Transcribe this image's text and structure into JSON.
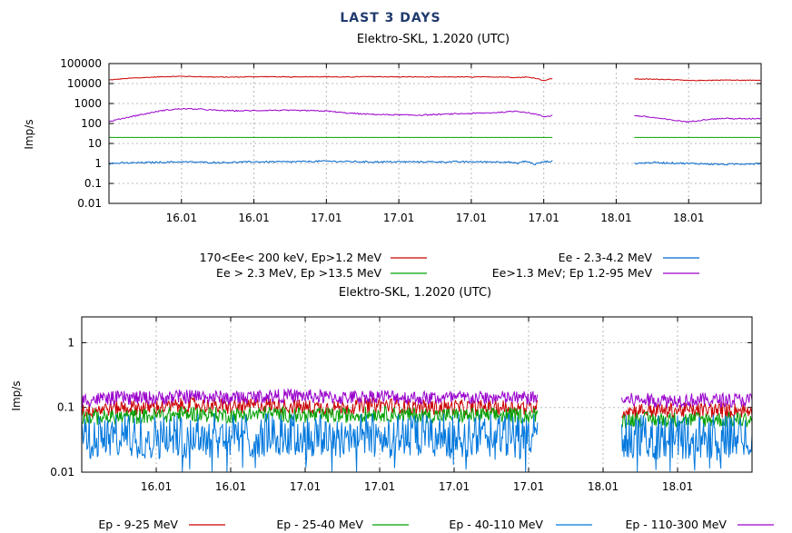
{
  "title": "LAST 3 DAYS",
  "chart_data": [
    {
      "type": "line",
      "subtitle": "Elektro-SKL, 1.2020 (UTC)",
      "ylabel": "Imp/s",
      "yscale": "log",
      "ylim": [
        0.01,
        100000
      ],
      "yticks": [
        {
          "v": 0.01,
          "label": "0.01"
        },
        {
          "v": 0.1,
          "label": "0.1"
        },
        {
          "v": 1,
          "label": "1"
        },
        {
          "v": 10,
          "label": "10"
        },
        {
          "v": 100,
          "label": "100"
        },
        {
          "v": 1000,
          "label": "1000"
        },
        {
          "v": 10000,
          "label": "10000"
        },
        {
          "v": 100000,
          "label": "100000"
        }
      ],
      "xlim": [
        0,
        72
      ],
      "xticks": [
        {
          "v": 8,
          "label": "16.01"
        },
        {
          "v": 16,
          "label": "16.01"
        },
        {
          "v": 24,
          "label": "17.01"
        },
        {
          "v": 32,
          "label": "17.01"
        },
        {
          "v": 40,
          "label": "17.01"
        },
        {
          "v": 48,
          "label": "17.01"
        },
        {
          "v": 56,
          "label": "18.01"
        },
        {
          "v": 64,
          "label": "18.01"
        }
      ],
      "grid": true,
      "legend_position": "bottom",
      "series": [
        {
          "name": "170<Ee< 200 keV, Ep>1.2 MeV",
          "color": "#cc0000",
          "x": [
            0,
            2,
            4,
            6,
            8,
            10,
            12,
            14,
            16,
            18,
            20,
            22,
            24,
            26,
            28,
            30,
            32,
            34,
            36,
            38,
            40,
            42,
            44,
            45,
            46,
            47,
            48,
            49,
            58,
            60,
            62,
            64,
            66,
            68,
            70,
            72
          ],
          "y": [
            15000,
            18000,
            20000,
            22000,
            23000,
            22000,
            21000,
            21000,
            22000,
            22000,
            21000,
            22000,
            22000,
            21000,
            22000,
            22000,
            21500,
            21500,
            21000,
            21500,
            21000,
            21500,
            21000,
            20000,
            21000,
            19000,
            14000,
            18000,
            17000,
            16500,
            16000,
            14000,
            14500,
            15000,
            14500,
            15000
          ]
        },
        {
          "name": "Ee - 2.3-4.2 MeV",
          "color": "#0066cc",
          "x": [
            0,
            4,
            8,
            12,
            16,
            20,
            24,
            28,
            32,
            36,
            40,
            44,
            45,
            46,
            47,
            48,
            49,
            58,
            60,
            64,
            68,
            72
          ],
          "y": [
            1.0,
            1.1,
            1.2,
            1.1,
            1.2,
            1.2,
            1.3,
            1.2,
            1.2,
            1.2,
            1.2,
            1.2,
            1.0,
            1.3,
            0.9,
            1.2,
            1.3,
            1.0,
            1.1,
            1.0,
            0.9,
            1.0
          ]
        },
        {
          "name": "Ee > 2.3 MeV, Ep >13.5 MeV",
          "color": "#00a000",
          "x": [
            0,
            49,
            58,
            72
          ],
          "y": [
            20,
            20,
            20,
            20
          ]
        },
        {
          "name": "Ee>1.3 MeV; Ep  1.2-95 MeV",
          "color": "#9900cc",
          "x": [
            0,
            2,
            4,
            6,
            8,
            10,
            12,
            14,
            16,
            18,
            20,
            22,
            24,
            26,
            28,
            30,
            32,
            34,
            36,
            38,
            40,
            42,
            44,
            45,
            46,
            47,
            48,
            49,
            58,
            60,
            62,
            64,
            66,
            68,
            70,
            72
          ],
          "y": [
            120,
            200,
            300,
            450,
            550,
            520,
            450,
            430,
            440,
            460,
            450,
            440,
            420,
            340,
            300,
            280,
            270,
            260,
            280,
            300,
            320,
            340,
            380,
            420,
            360,
            300,
            220,
            250,
            250,
            200,
            150,
            120,
            160,
            180,
            170,
            180
          ]
        }
      ]
    },
    {
      "type": "line",
      "subtitle": "Elektro-SKL, 1.2020 (UTC)",
      "ylabel": "Imp/s",
      "yscale": "log",
      "ylim": [
        0.01,
        2.5
      ],
      "yticks": [
        {
          "v": 0.01,
          "label": "0.01"
        },
        {
          "v": 0.1,
          "label": "0.1"
        },
        {
          "v": 1,
          "label": "1"
        }
      ],
      "xlim": [
        0,
        72
      ],
      "xticks": [
        {
          "v": 8,
          "label": "16.01"
        },
        {
          "v": 16,
          "label": "16.01"
        },
        {
          "v": 24,
          "label": "17.01"
        },
        {
          "v": 32,
          "label": "17.01"
        },
        {
          "v": 40,
          "label": "17.01"
        },
        {
          "v": 48,
          "label": "17.01"
        },
        {
          "v": 56,
          "label": "18.01"
        },
        {
          "v": 64,
          "label": "18.01"
        }
      ],
      "grid": true,
      "legend_position": "bottom",
      "series": [
        {
          "name": "Ep - 9-25 MeV",
          "color": "#cc0000",
          "x": [
            0,
            4,
            8,
            12,
            16,
            20,
            24,
            28,
            32,
            36,
            40,
            44,
            49,
            58,
            62,
            66,
            72
          ],
          "y": [
            0.09,
            0.1,
            0.1,
            0.11,
            0.1,
            0.11,
            0.1,
            0.1,
            0.11,
            0.1,
            0.1,
            0.1,
            0.1,
            0.09,
            0.09,
            0.09,
            0.09
          ]
        },
        {
          "name": "Ep - 25-40 MeV",
          "color": "#00a000",
          "x": [
            0,
            4,
            8,
            12,
            16,
            20,
            24,
            28,
            32,
            36,
            40,
            44,
            49,
            58,
            62,
            66,
            72
          ],
          "y": [
            0.07,
            0.07,
            0.075,
            0.08,
            0.075,
            0.08,
            0.075,
            0.075,
            0.08,
            0.075,
            0.075,
            0.075,
            0.075,
            0.065,
            0.065,
            0.065,
            0.065
          ]
        },
        {
          "name": "Ep - 40-110 MeV",
          "color": "#0077dd",
          "x": [
            0,
            4,
            8,
            12,
            16,
            20,
            24,
            28,
            32,
            36,
            40,
            44,
            49,
            58,
            62,
            66,
            72
          ],
          "y": [
            0.035,
            0.035,
            0.035,
            0.037,
            0.036,
            0.037,
            0.036,
            0.036,
            0.037,
            0.036,
            0.036,
            0.036,
            0.036,
            0.035,
            0.035,
            0.035,
            0.035
          ]
        },
        {
          "name": "Ep - 110-300 MeV",
          "color": "#9900cc",
          "x": [
            0,
            4,
            8,
            12,
            16,
            20,
            24,
            28,
            32,
            36,
            40,
            44,
            49,
            58,
            62,
            66,
            72
          ],
          "y": [
            0.13,
            0.14,
            0.14,
            0.15,
            0.14,
            0.15,
            0.15,
            0.14,
            0.15,
            0.14,
            0.14,
            0.14,
            0.14,
            0.13,
            0.13,
            0.13,
            0.13
          ]
        }
      ]
    }
  ]
}
